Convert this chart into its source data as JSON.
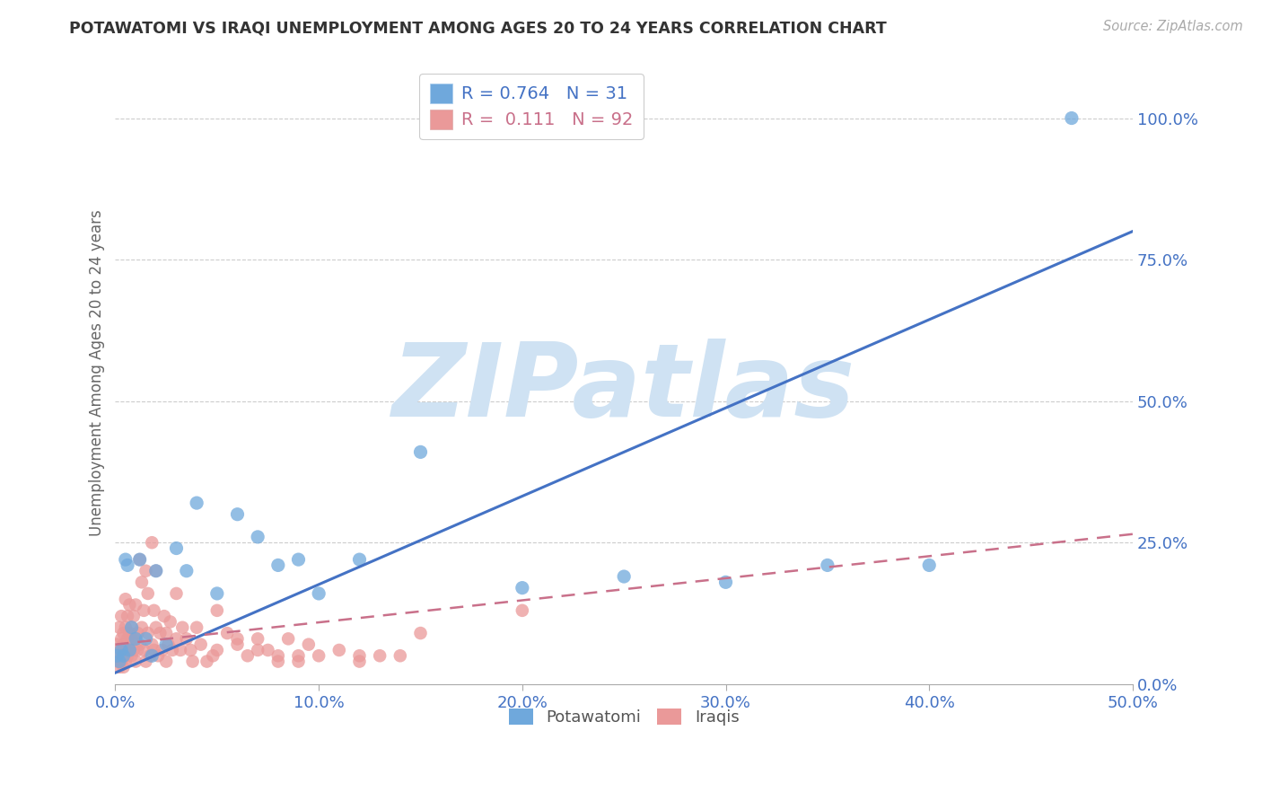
{
  "title": "POTAWATOMI VS IRAQI UNEMPLOYMENT AMONG AGES 20 TO 24 YEARS CORRELATION CHART",
  "source": "Source: ZipAtlas.com",
  "ylabel": "Unemployment Among Ages 20 to 24 years",
  "xlim": [
    0.0,
    0.5
  ],
  "ylim": [
    0.0,
    1.1
  ],
  "xticks": [
    0.0,
    0.1,
    0.2,
    0.3,
    0.4,
    0.5
  ],
  "xticklabels": [
    "0.0%",
    "10.0%",
    "20.0%",
    "30.0%",
    "40.0%",
    "50.0%"
  ],
  "yticks_right": [
    0.0,
    0.25,
    0.5,
    0.75,
    1.0
  ],
  "yticklabels_right": [
    "0.0%",
    "25.0%",
    "50.0%",
    "75.0%",
    "100.0%"
  ],
  "potawatomi_color": "#6fa8dc",
  "iraqi_color": "#ea9999",
  "regression_blue_color": "#4472c4",
  "regression_pink_color": "#c9708a",
  "watermark_color": "#cfe2f3",
  "watermark_text": "ZIPatlas",
  "legend_R_potawatomi": "0.764",
  "legend_N_potawatomi": "31",
  "legend_R_iraqi": "0.111",
  "legend_N_iraqi": "92",
  "blue_reg": [
    0.0,
    0.02,
    0.5,
    0.8
  ],
  "pink_reg": [
    0.0,
    0.07,
    0.5,
    0.265
  ],
  "potawatomi_x": [
    0.001,
    0.002,
    0.003,
    0.004,
    0.005,
    0.006,
    0.007,
    0.008,
    0.01,
    0.012,
    0.015,
    0.018,
    0.02,
    0.025,
    0.03,
    0.035,
    0.04,
    0.05,
    0.06,
    0.07,
    0.08,
    0.09,
    0.1,
    0.12,
    0.15,
    0.2,
    0.25,
    0.3,
    0.35,
    0.4,
    0.47
  ],
  "potawatomi_y": [
    0.05,
    0.04,
    0.06,
    0.05,
    0.22,
    0.21,
    0.06,
    0.1,
    0.08,
    0.22,
    0.08,
    0.05,
    0.2,
    0.07,
    0.24,
    0.2,
    0.32,
    0.16,
    0.3,
    0.26,
    0.21,
    0.22,
    0.16,
    0.22,
    0.41,
    0.17,
    0.19,
    0.18,
    0.21,
    0.21,
    1.0
  ],
  "iraqi_x": [
    0.001,
    0.001,
    0.002,
    0.002,
    0.002,
    0.003,
    0.003,
    0.003,
    0.003,
    0.004,
    0.004,
    0.004,
    0.005,
    0.005,
    0.005,
    0.005,
    0.006,
    0.006,
    0.006,
    0.007,
    0.007,
    0.007,
    0.008,
    0.008,
    0.008,
    0.009,
    0.009,
    0.01,
    0.01,
    0.01,
    0.011,
    0.011,
    0.012,
    0.012,
    0.013,
    0.013,
    0.014,
    0.014,
    0.015,
    0.015,
    0.016,
    0.016,
    0.017,
    0.018,
    0.018,
    0.019,
    0.019,
    0.02,
    0.02,
    0.021,
    0.022,
    0.023,
    0.024,
    0.025,
    0.025,
    0.026,
    0.027,
    0.028,
    0.03,
    0.03,
    0.032,
    0.033,
    0.035,
    0.037,
    0.038,
    0.04,
    0.042,
    0.045,
    0.048,
    0.05,
    0.055,
    0.06,
    0.065,
    0.07,
    0.075,
    0.08,
    0.085,
    0.09,
    0.095,
    0.1,
    0.11,
    0.12,
    0.13,
    0.14,
    0.06,
    0.07,
    0.08,
    0.09,
    0.2,
    0.15,
    0.05,
    0.12
  ],
  "iraqi_y": [
    0.04,
    0.07,
    0.06,
    0.1,
    0.03,
    0.05,
    0.08,
    0.12,
    0.04,
    0.07,
    0.09,
    0.03,
    0.06,
    0.1,
    0.15,
    0.04,
    0.08,
    0.12,
    0.05,
    0.09,
    0.14,
    0.06,
    0.1,
    0.05,
    0.08,
    0.12,
    0.06,
    0.08,
    0.04,
    0.14,
    0.09,
    0.06,
    0.22,
    0.07,
    0.18,
    0.1,
    0.06,
    0.13,
    0.04,
    0.2,
    0.16,
    0.09,
    0.05,
    0.25,
    0.07,
    0.13,
    0.06,
    0.1,
    0.2,
    0.05,
    0.09,
    0.06,
    0.12,
    0.09,
    0.04,
    0.07,
    0.11,
    0.06,
    0.08,
    0.16,
    0.06,
    0.1,
    0.08,
    0.06,
    0.04,
    0.1,
    0.07,
    0.04,
    0.05,
    0.06,
    0.09,
    0.07,
    0.05,
    0.08,
    0.06,
    0.05,
    0.08,
    0.04,
    0.07,
    0.05,
    0.06,
    0.04,
    0.05,
    0.05,
    0.08,
    0.06,
    0.04,
    0.05,
    0.13,
    0.09,
    0.13,
    0.05
  ]
}
